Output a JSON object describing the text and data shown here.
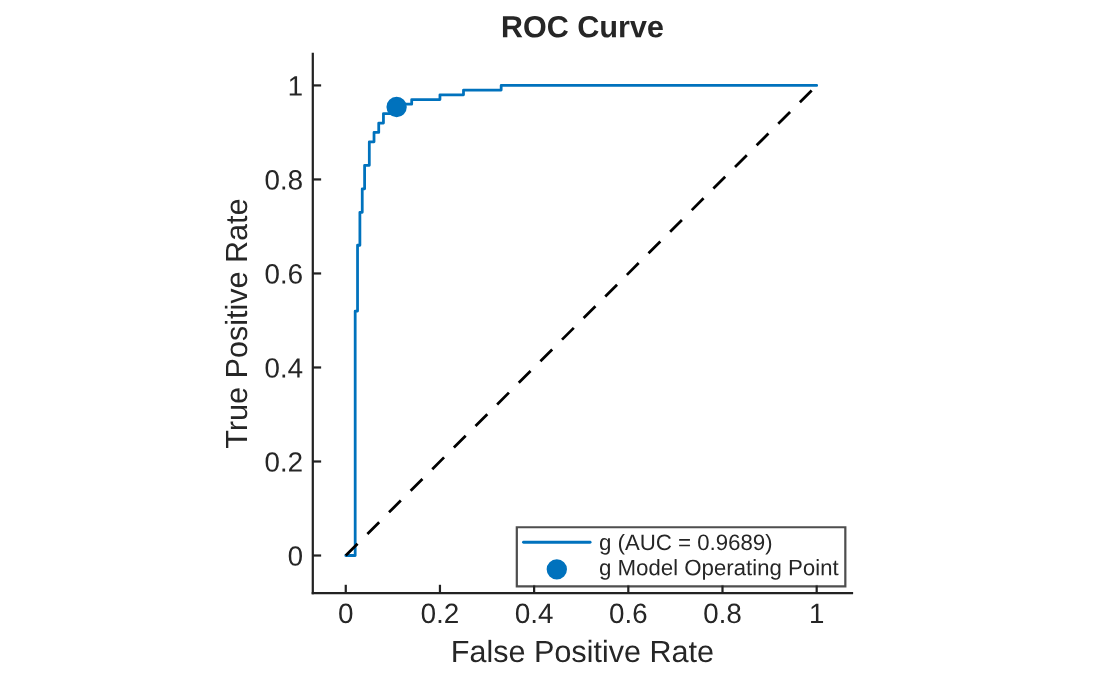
{
  "chart_data": {
    "type": "step",
    "title": "ROC Curve",
    "xlabel": "False Positive Rate",
    "ylabel": "True Positive Rate",
    "xlim": [
      -0.07,
      1.075
    ],
    "ylim": [
      -0.08,
      1.067
    ],
    "xticks": [
      0,
      0.2,
      0.4,
      0.6,
      0.8,
      1
    ],
    "yticks": [
      0,
      0.2,
      0.4,
      0.6,
      0.8,
      1
    ],
    "grid": false,
    "legend": "bottom right",
    "series": [
      {
        "name": "g (AUC = 0.9689)",
        "color": "#0072bd",
        "x": [
          0,
          0.02,
          0.025,
          0.03,
          0.035,
          0.04,
          0.05,
          0.06,
          0.07,
          0.08,
          0.1,
          0.12,
          0.14,
          0.2,
          0.25,
          0.33,
          1
        ],
        "values": [
          0,
          0.52,
          0.66,
          0.73,
          0.78,
          0.83,
          0.88,
          0.9,
          0.92,
          0.94,
          0.955,
          0.96,
          0.97,
          0.98,
          0.99,
          1,
          1
        ]
      },
      {
        "type": "line",
        "color": "#000000",
        "line_style": "dashed",
        "x": [
          0,
          1
        ],
        "values": [
          0,
          1
        ]
      },
      {
        "name": "g Model Operating Point",
        "type": "scatter",
        "color": "#0072bd",
        "marker": "circle",
        "x": [
          0.108
        ],
        "values": [
          0.954
        ]
      }
    ]
  }
}
